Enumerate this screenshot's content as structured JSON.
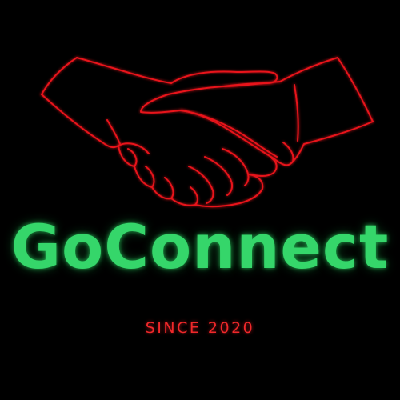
{
  "logo": {
    "brand_name": "GoConnect",
    "tagline": "SINCE 2020",
    "icon": "handshake-icon"
  },
  "colors": {
    "background": "#000000",
    "brand_green": "#35d66a",
    "accent_red": "#e8141b"
  }
}
